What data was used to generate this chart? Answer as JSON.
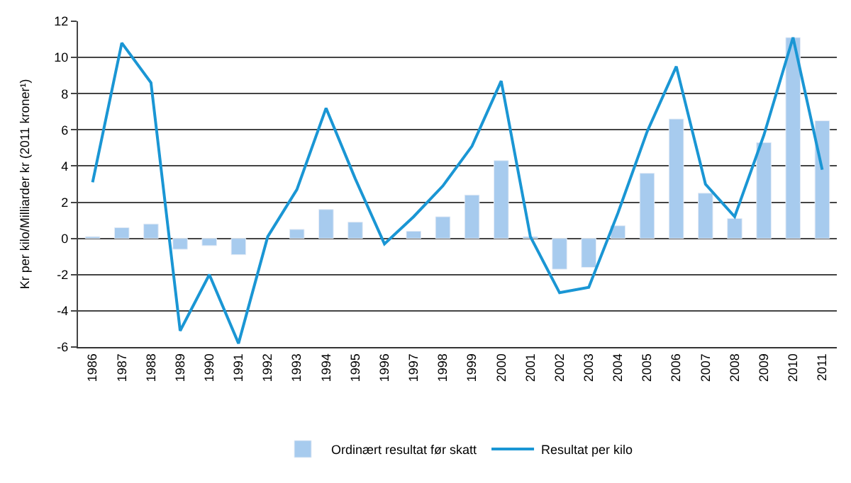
{
  "chart_data": {
    "type": "bar",
    "ylabel": "Kr per kilo/Milliarder kr (2011 kroner¹)",
    "categories": [
      "1986",
      "1987",
      "1988",
      "1989",
      "1990",
      "1991",
      "1992",
      "1993",
      "1994",
      "1995",
      "1996",
      "1997",
      "1998",
      "1999",
      "2000",
      "2001",
      "2002",
      "2003",
      "2004",
      "2005",
      "2006",
      "2007",
      "2008",
      "2009",
      "2010",
      "2011"
    ],
    "series": [
      {
        "name": "Ordinært resultat før skatt",
        "color": "#a7cbee",
        "values": [
          0.1,
          0.6,
          0.8,
          -0.6,
          -0.4,
          -0.9,
          null,
          0.5,
          1.6,
          0.9,
          null,
          0.4,
          1.2,
          2.4,
          4.3,
          0.1,
          -1.7,
          -1.6,
          0.7,
          3.6,
          6.6,
          2.5,
          1.1,
          5.3,
          11.1,
          6.5
        ]
      },
      {
        "name": "Resultat per kilo",
        "type": "line",
        "color": "#1a96d4",
        "values": [
          3.1,
          10.8,
          8.6,
          -5.1,
          -2.0,
          -5.8,
          0.1,
          2.7,
          7.2,
          3.3,
          -0.3,
          1.2,
          2.9,
          5.1,
          8.7,
          0.1,
          -3.0,
          -2.7,
          1.4,
          5.9,
          9.5,
          3.0,
          1.2,
          5.7,
          11.1,
          3.8
        ]
      }
    ],
    "ylim": [
      -6,
      12
    ],
    "yticks": [
      -6,
      -4,
      -2,
      0,
      2,
      4,
      6,
      8,
      10,
      12
    ],
    "grid": "y",
    "legend": "bottom",
    "marker": "none"
  }
}
